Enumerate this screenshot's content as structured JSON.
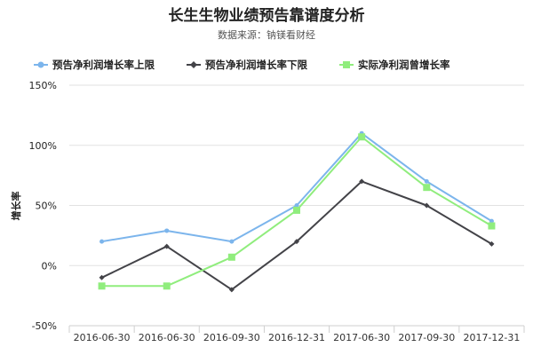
{
  "chart_data": {
    "type": "line",
    "title": "长生生物业绩预告靠谱度分析",
    "subtitle": "数据来源：钠镁看财经",
    "ylabel": "增长率",
    "xlabel": "",
    "ylim": [
      -50,
      150
    ],
    "yticks": [
      -50,
      0,
      50,
      100,
      150
    ],
    "ytick_labels": [
      "-50%",
      "0%",
      "50%",
      "100%",
      "150%"
    ],
    "grid": true,
    "legend_position": "top",
    "categories": [
      "2016-06-30",
      "2016-06-30",
      "2016-09-30",
      "2016-12-31",
      "2017-06-30",
      "2017-09-30",
      "2017-12-31"
    ],
    "series": [
      {
        "name": "预告净利润增长率上限",
        "color": "#7cb5ec",
        "marker": "circle",
        "values": [
          20,
          29,
          20,
          50,
          110,
          70,
          37
        ]
      },
      {
        "name": "预告净利润增长率下限",
        "color": "#434348",
        "marker": "diamond",
        "values": [
          -10,
          16,
          -20,
          20,
          70,
          50,
          18
        ]
      },
      {
        "name": "实际净利润曾增长率",
        "color": "#90ed7d",
        "marker": "square",
        "values": [
          -17,
          -17,
          7,
          46,
          107,
          65,
          33
        ]
      }
    ]
  }
}
